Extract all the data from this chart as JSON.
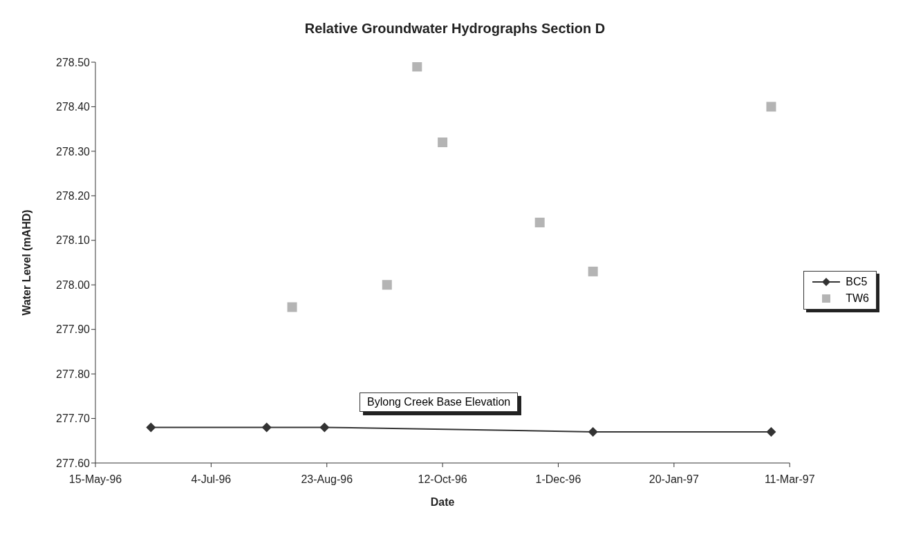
{
  "chart_data": {
    "type": "scatter",
    "title": "Relative Groundwater Hydrographs Section D",
    "xlabel": "Date",
    "ylabel": "Water Level (mAHD)",
    "series": [
      {
        "name": "BC5",
        "type": "line",
        "color": "#333333",
        "marker": "diamond",
        "x": [
          "1996-06-08",
          "1996-07-28",
          "1996-08-22",
          "1996-12-16",
          "1997-03-03"
        ],
        "values": [
          277.68,
          277.68,
          277.68,
          277.67,
          277.67
        ]
      },
      {
        "name": "TW6",
        "color": "#b4b4b4",
        "marker": "square",
        "x": [
          "1996-08-08",
          "1996-09-18",
          "1996-10-01",
          "1996-10-12",
          "1996-11-23",
          "1996-12-16",
          "1997-03-03"
        ],
        "values": [
          277.95,
          278.0,
          278.49,
          278.32,
          278.14,
          278.03,
          278.4
        ]
      }
    ],
    "xlim": [
      "1996-05-15",
      "1997-03-11"
    ],
    "xticks": [
      {
        "value": "1996-05-15",
        "label": "15-May-96"
      },
      {
        "value": "1996-07-04",
        "label": "4-Jul-96"
      },
      {
        "value": "1996-08-23",
        "label": "23-Aug-96"
      },
      {
        "value": "1996-10-12",
        "label": "12-Oct-96"
      },
      {
        "value": "1996-12-01",
        "label": "1-Dec-96"
      },
      {
        "value": "1997-01-20",
        "label": "20-Jan-97"
      },
      {
        "value": "1997-03-11",
        "label": "11-Mar-97"
      }
    ],
    "ylim": [
      277.6,
      278.5
    ],
    "yticks": [
      {
        "value": 277.6,
        "label": "277.60"
      },
      {
        "value": 277.7,
        "label": "277.70"
      },
      {
        "value": 277.8,
        "label": "277.80"
      },
      {
        "value": 277.9,
        "label": "277.90"
      },
      {
        "value": 278.0,
        "label": "278.00"
      },
      {
        "value": 278.1,
        "label": "278.10"
      },
      {
        "value": 278.2,
        "label": "278.20"
      },
      {
        "value": 278.3,
        "label": "278.30"
      },
      {
        "value": 278.4,
        "label": "278.40"
      },
      {
        "value": 278.5,
        "label": "278.50"
      }
    ],
    "annotations": [
      "Bylong Creek Base Elevation"
    ],
    "grid": false,
    "legend": "right"
  }
}
